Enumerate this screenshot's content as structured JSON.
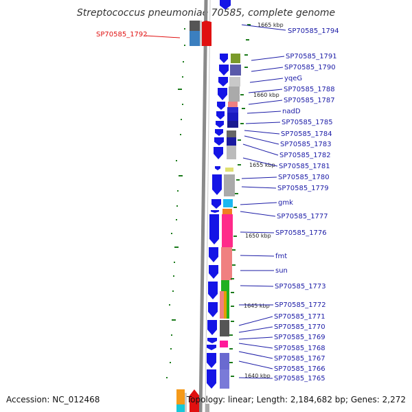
{
  "title": "Streptococcus pneumoniae 70585, complete genome",
  "footer": {
    "accession": "Accession: NC_012468",
    "summary": "Topology: linear; Length: 2,184,682 bp; Genes: 2,272"
  },
  "highlighted_gene": "SP70585_1792",
  "gene_labels": [
    "SP70585_1794",
    "SP70585_1791",
    "SP70585_1790",
    "yqeG",
    "SP70585_1788",
    "SP70585_1787",
    "nadD",
    "SP70585_1785",
    "SP70585_1784",
    "SP70585_1783",
    "SP70585_1782",
    "SP70585_1781",
    "SP70585_1780",
    "SP70585_1779",
    "gmk",
    "SP70585_1777",
    "SP70585_1776",
    "fmt",
    "sun",
    "SP70585_1773",
    "SP70585_1772",
    "SP70585_1771",
    "SP70585_1770",
    "SP70585_1769",
    "SP70585_1768",
    "SP70585_1767",
    "SP70585_1766",
    "SP70585_1765"
  ],
  "scale_labels": [
    "1665 kbp",
    "1660 kbp",
    "1655 kbp",
    "1650 kbp",
    "1645 kbp",
    "1640 kbp"
  ],
  "colors": {
    "strand_gene": "#1414e6",
    "highlight": "#e01010",
    "label": "#1a1aa6",
    "tick": "#1a7a1a",
    "axis": "#888888"
  }
}
